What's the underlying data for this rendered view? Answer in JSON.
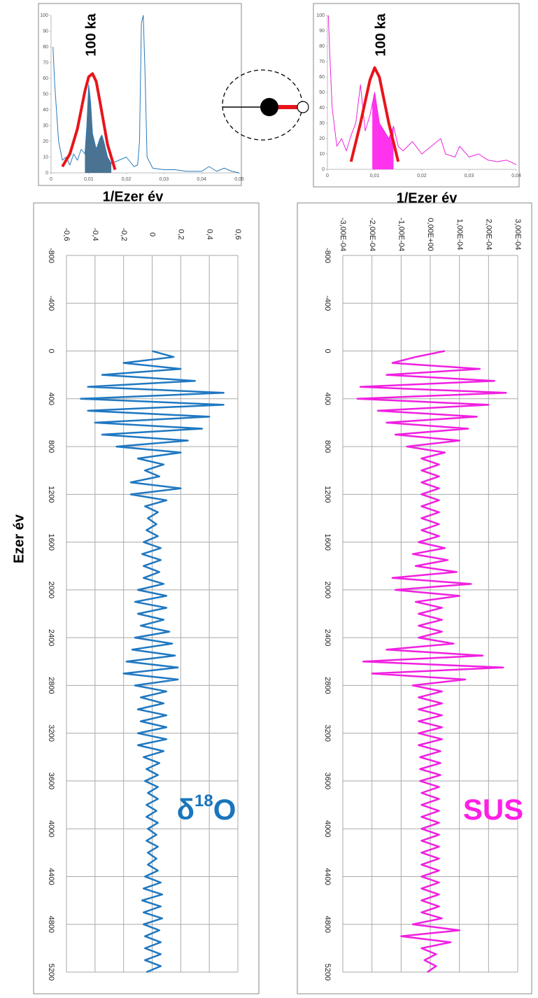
{
  "chart_data": [
    {
      "type": "line",
      "annotation": "100 ka",
      "xlabel": "1/Ezer év",
      "xlim": [
        0,
        0.05
      ],
      "xticks": [
        0,
        {
          "value": 0.01,
          "label": "0,01"
        },
        {
          "value": 0.02,
          "label": "0,02"
        },
        {
          "value": 0.03,
          "label": "0,03"
        },
        {
          "value": 0.04,
          "label": "0,04"
        },
        {
          "value": 0.05,
          "label": "0,05"
        }
      ],
      "ylim": [
        0,
        100
      ],
      "yticks": [
        0,
        10,
        20,
        30,
        40,
        50,
        60,
        70,
        80,
        90,
        100
      ],
      "shade_range": [
        0.009,
        0.016
      ],
      "shade_color": "#4a7391",
      "series": [
        {
          "color": "#2a7ab8",
          "x": [
            0.0005,
            0.001,
            0.002,
            0.003,
            0.004,
            0.005,
            0.006,
            0.007,
            0.008,
            0.009,
            0.0095,
            0.01,
            0.0105,
            0.011,
            0.012,
            0.013,
            0.0135,
            0.014,
            0.015,
            0.016,
            0.018,
            0.02,
            0.022,
            0.023,
            0.0235,
            0.024,
            0.0245,
            0.025,
            0.0255,
            0.027,
            0.03,
            0.033,
            0.036,
            0.04,
            0.042,
            0.044,
            0.046,
            0.048,
            0.05
          ],
          "values": [
            80,
            55,
            20,
            8,
            10,
            5,
            12,
            8,
            15,
            12,
            30,
            56,
            45,
            25,
            15,
            22,
            24,
            20,
            10,
            6,
            8,
            10,
            4,
            5,
            20,
            95,
            100,
            60,
            10,
            3,
            2,
            2,
            1,
            1,
            4,
            1,
            3,
            1,
            0
          ]
        },
        {
          "color": "#e8141b",
          "x": [
            0.003,
            0.005,
            0.007,
            0.009,
            0.01,
            0.011,
            0.012,
            0.013,
            0.015,
            0.017
          ],
          "values": [
            4,
            12,
            28,
            52,
            61,
            63,
            58,
            45,
            18,
            2
          ]
        }
      ]
    },
    {
      "type": "line",
      "annotation": "100 ka",
      "xlabel": "1/Ezer év",
      "xlim": [
        0,
        0.04
      ],
      "xticks": [
        0,
        {
          "value": 0.01,
          "label": "0,01"
        },
        {
          "value": 0.02,
          "label": "0,02"
        },
        {
          "value": 0.03,
          "label": "0,03"
        },
        {
          "value": 0.04,
          "label": "0,04"
        }
      ],
      "ylim": [
        0,
        100
      ],
      "yticks": [
        0,
        10,
        20,
        30,
        40,
        50,
        60,
        70,
        80,
        90,
        100
      ],
      "shade_range": [
        0.0095,
        0.014
      ],
      "shade_color": "#ff33ee",
      "series": [
        {
          "color": "#ee22dd",
          "x": [
            0.0002,
            0.0005,
            0.001,
            0.002,
            0.003,
            0.004,
            0.005,
            0.006,
            0.007,
            0.0075,
            0.008,
            0.009,
            0.01,
            0.0105,
            0.011,
            0.012,
            0.013,
            0.014,
            0.015,
            0.016,
            0.018,
            0.02,
            0.022,
            0.024,
            0.025,
            0.027,
            0.028,
            0.03,
            0.032,
            0.034,
            0.036,
            0.038,
            0.04
          ],
          "values": [
            100,
            75,
            40,
            15,
            20,
            12,
            22,
            30,
            55,
            40,
            25,
            35,
            50,
            40,
            30,
            25,
            20,
            28,
            15,
            12,
            18,
            10,
            15,
            20,
            10,
            8,
            15,
            8,
            10,
            6,
            5,
            6,
            3
          ]
        },
        {
          "color": "#e8141b",
          "x": [
            0.005,
            0.007,
            0.009,
            0.01,
            0.011,
            0.012,
            0.013,
            0.015
          ],
          "values": [
            5,
            30,
            58,
            66,
            60,
            45,
            30,
            5
          ]
        }
      ]
    },
    {
      "type": "line",
      "rotated": true,
      "ylabel": "Ezer év",
      "series_label": [
        "δ",
        "18",
        "O"
      ],
      "label_color": "#1a75bc",
      "grid": true,
      "xlim": [
        -800,
        5200
      ],
      "xticks": [
        -800,
        -400,
        0,
        400,
        800,
        1200,
        1600,
        2000,
        2400,
        2800,
        3200,
        3600,
        4000,
        4400,
        4800,
        5200
      ],
      "ylim": [
        -0.6,
        0.6
      ],
      "yticks": [
        {
          "value": -0.6,
          "label": "-0,6"
        },
        {
          "value": -0.4,
          "label": "-0,4"
        },
        {
          "value": -0.2,
          "label": "-0,2"
        },
        0,
        {
          "value": 0.2,
          "label": "0,2"
        },
        {
          "value": 0.4,
          "label": "0,4"
        },
        {
          "value": 0.6,
          "label": "0,6"
        }
      ],
      "series": [
        {
          "color": "#1f78c1",
          "x": [
            0,
            50,
            100,
            150,
            200,
            250,
            300,
            350,
            400,
            450,
            500,
            550,
            600,
            650,
            700,
            750,
            800,
            850,
            900,
            950,
            1000,
            1050,
            1100,
            1150,
            1200,
            1250,
            1300,
            1350,
            1400,
            1450,
            1500,
            1550,
            1600,
            1650,
            1700,
            1750,
            1800,
            1850,
            1900,
            1950,
            2000,
            2050,
            2100,
            2150,
            2200,
            2250,
            2300,
            2350,
            2400,
            2450,
            2500,
            2550,
            2600,
            2650,
            2700,
            2750,
            2800,
            2850,
            2900,
            2950,
            3000,
            3050,
            3100,
            3150,
            3200,
            3250,
            3300,
            3350,
            3400,
            3450,
            3500,
            3550,
            3600,
            3650,
            3700,
            3750,
            3800,
            3850,
            3900,
            3950,
            4000,
            4050,
            4100,
            4150,
            4200,
            4250,
            4300,
            4350,
            4400,
            4450,
            4500,
            4550,
            4600,
            4650,
            4700,
            4750,
            4800,
            4850,
            4900,
            4950,
            5000,
            5050,
            5100,
            5150,
            5200
          ],
          "values": [
            0,
            0.15,
            -0.2,
            0.2,
            -0.35,
            0.3,
            -0.45,
            0.5,
            -0.5,
            0.5,
            -0.45,
            0.4,
            -0.4,
            0.35,
            -0.35,
            0.25,
            -0.25,
            0.2,
            -0.1,
            0.08,
            -0.05,
            0.05,
            -0.15,
            0.2,
            -0.15,
            0.1,
            -0.05,
            0.04,
            -0.03,
            0.03,
            -0.04,
            0.04,
            -0.06,
            0.06,
            -0.07,
            0.06,
            -0.06,
            0.05,
            -0.06,
            0.08,
            -0.1,
            0.1,
            -0.12,
            0.1,
            -0.1,
            0.08,
            -0.08,
            0.12,
            -0.12,
            0.14,
            -0.14,
            0.16,
            -0.18,
            0.18,
            -0.2,
            0.18,
            -0.12,
            0.1,
            -0.08,
            0.08,
            -0.1,
            0.1,
            -0.08,
            0.1,
            -0.1,
            0.1,
            -0.1,
            0.08,
            -0.06,
            0.05,
            -0.04,
            0.04,
            -0.05,
            0.04,
            -0.03,
            0.04,
            -0.04,
            0.03,
            -0.04,
            0.04,
            -0.03,
            0.03,
            -0.04,
            0.04,
            -0.03,
            0.03,
            -0.03,
            0.04,
            -0.05,
            0.06,
            -0.06,
            0.07,
            -0.07,
            0.06,
            -0.06,
            0.07,
            -0.06,
            0.05,
            -0.05,
            0.06,
            -0.05,
            0.06,
            -0.05,
            0.06,
            -0.04
          ]
        }
      ]
    },
    {
      "type": "line",
      "rotated": true,
      "series_label": [
        "SUS"
      ],
      "label_color": "#ff1fe6",
      "grid": true,
      "xlim": [
        -800,
        5200
      ],
      "xticks": [
        -800,
        -400,
        0,
        400,
        800,
        1200,
        1600,
        2000,
        2400,
        2800,
        3200,
        3600,
        4000,
        4400,
        4800,
        5200
      ],
      "ylim": [
        -0.0003,
        0.0003
      ],
      "yticks": [
        {
          "value": -0.0003,
          "label": "-3,00E-04"
        },
        {
          "value": -0.0002,
          "label": "-2,00E-04"
        },
        {
          "value": -0.0001,
          "label": "-1,00E-04"
        },
        {
          "value": 0,
          "label": "0,00E+00"
        },
        {
          "value": 0.0001,
          "label": "1,00E-04"
        },
        {
          "value": 0.0002,
          "label": "2,00E-04"
        },
        {
          "value": 0.0003,
          "label": "3,00E-04"
        }
      ],
      "series": [
        {
          "color": "#f020e0",
          "x": [
            0,
            50,
            100,
            150,
            200,
            250,
            300,
            350,
            400,
            450,
            500,
            550,
            600,
            650,
            700,
            750,
            800,
            850,
            900,
            950,
            1000,
            1050,
            1100,
            1150,
            1200,
            1250,
            1300,
            1350,
            1400,
            1450,
            1500,
            1550,
            1600,
            1650,
            1700,
            1750,
            1800,
            1850,
            1900,
            1950,
            2000,
            2050,
            2100,
            2150,
            2200,
            2250,
            2300,
            2350,
            2400,
            2450,
            2500,
            2550,
            2600,
            2650,
            2700,
            2750,
            2800,
            2850,
            2900,
            2950,
            3000,
            3050,
            3100,
            3150,
            3200,
            3250,
            3300,
            3350,
            3400,
            3450,
            3500,
            3550,
            3600,
            3650,
            3700,
            3750,
            3800,
            3850,
            3900,
            3950,
            4000,
            4050,
            4100,
            4150,
            4200,
            4250,
            4300,
            4350,
            4400,
            4450,
            4500,
            4550,
            4600,
            4650,
            4700,
            4750,
            4800,
            4850,
            4900,
            4950,
            5000,
            5050,
            5100,
            5150,
            5200
          ],
          "values": [
            5e-05,
            -5e-05,
            -0.00013,
            0.00017,
            -0.00015,
            0.00022,
            -0.00024,
            0.00026,
            -0.00025,
            0.0002,
            -0.00018,
            0.00016,
            -0.00015,
            0.00013,
            -0.00012,
            0.0001,
            -8e-05,
            5e-05,
            -3e-05,
            3e-05,
            -3e-05,
            3e-05,
            -3e-05,
            3e-05,
            -3e-05,
            3e-05,
            -3e-05,
            3e-05,
            -3e-05,
            3e-05,
            -3e-05,
            3e-05,
            -4e-05,
            5e-05,
            -6e-05,
            6e-05,
            -5e-05,
            9e-05,
            -0.00013,
            0.00014,
            -0.00012,
            0.0001,
            -5e-05,
            4e-05,
            -4e-05,
            4e-05,
            -4e-05,
            4e-05,
            -4e-05,
            8e-05,
            -0.00015,
            0.00018,
            -0.00023,
            0.00025,
            -0.0002,
            0.00012,
            -6e-05,
            4e-05,
            -4e-05,
            4e-05,
            -4e-05,
            4e-05,
            -4e-05,
            4e-05,
            -4e-05,
            4e-05,
            -4e-05,
            3.5e-05,
            -3.5e-05,
            3.5e-05,
            -3.5e-05,
            3.5e-05,
            -3.5e-05,
            3e-05,
            -3e-05,
            3e-05,
            -3e-05,
            3e-05,
            -3e-05,
            3e-05,
            -3e-05,
            3e-05,
            -3e-05,
            3e-05,
            -3e-05,
            3e-05,
            -3e-05,
            3e-05,
            -3e-05,
            3e-05,
            -3e-05,
            3e-05,
            -3e-05,
            3e-05,
            -3e-05,
            4e-05,
            -6e-05,
            0.0001,
            -0.0001,
            7e-05,
            -3e-05,
            2e-05,
            -2e-05,
            2e-05,
            -1e-05
          ]
        }
      ]
    }
  ]
}
